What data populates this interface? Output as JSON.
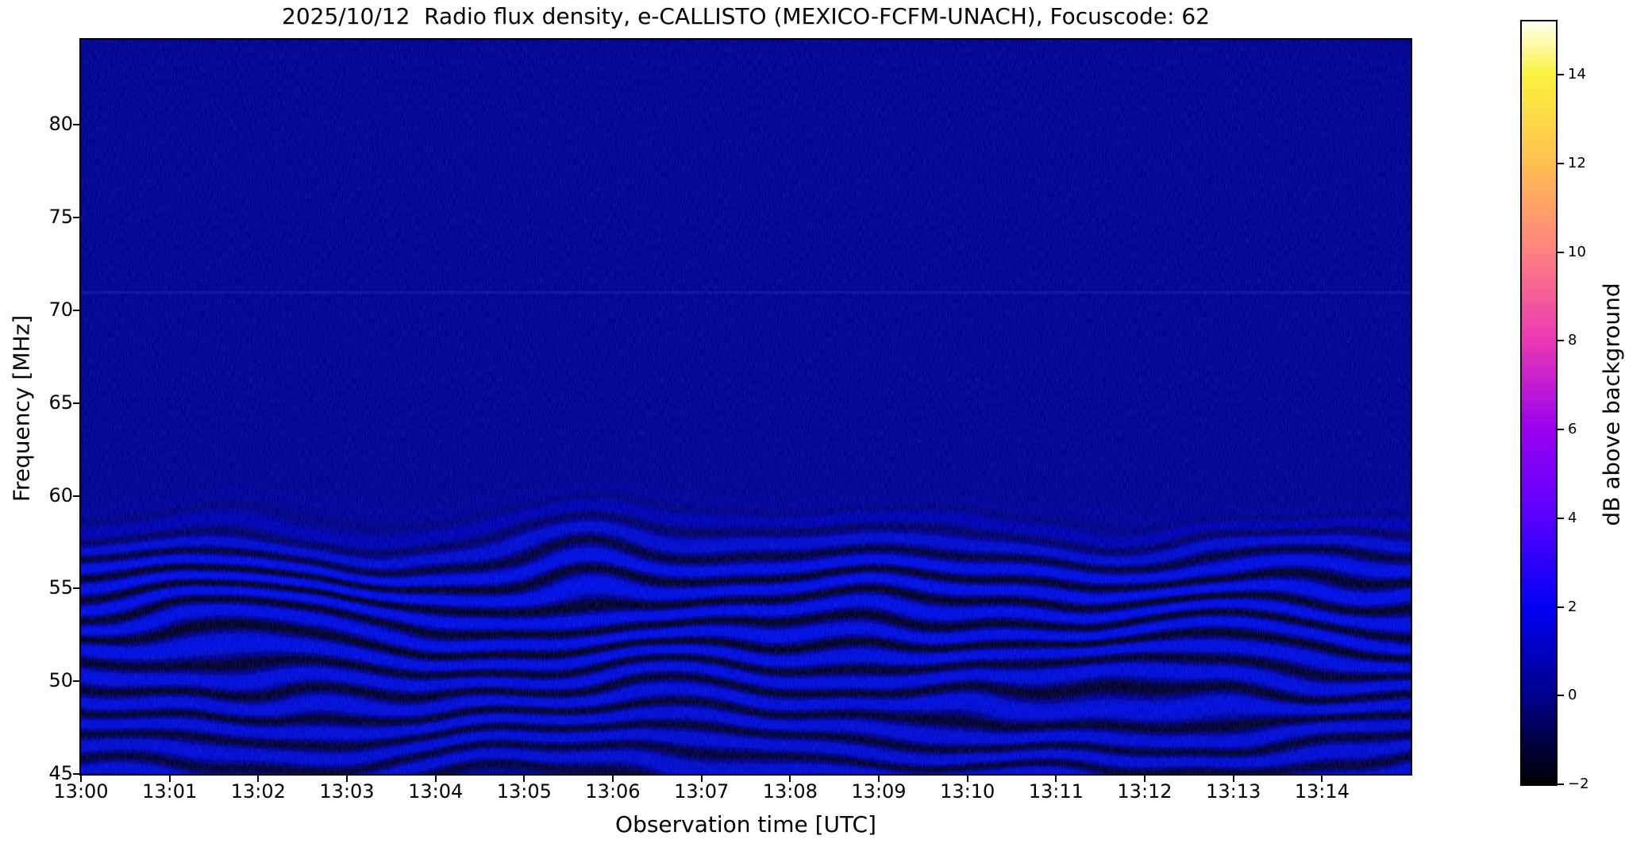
{
  "figure": {
    "title": "2025/10/12  Radio flux density, e-CALLISTO (MEXICO-FCFM-UNACH), Focuscode: 62",
    "xlabel": "Observation time [UTC]",
    "ylabel": "Frequency [MHz]",
    "colorbar_label": "dB above background"
  },
  "chart_data": {
    "type": "heatmap",
    "subtype": "radio-spectrogram",
    "title": "2025/10/12  Radio flux density, e-CALLISTO (MEXICO-FCFM-UNACH), Focuscode: 62",
    "xlabel": "Observation time [UTC]",
    "ylabel": "Frequency [MHz]",
    "x_ticks": [
      "13:00",
      "13:01",
      "13:02",
      "13:03",
      "13:04",
      "13:05",
      "13:06",
      "13:07",
      "13:08",
      "13:09",
      "13:10",
      "13:11",
      "13:12",
      "13:13",
      "13:14"
    ],
    "x_range": [
      "13:00",
      "13:15"
    ],
    "x_tick_interval_min": 1,
    "y_ticks": [
      "80",
      "75",
      "70",
      "65",
      "60",
      "55",
      "50",
      "45"
    ],
    "y_tick_values": [
      80,
      75,
      70,
      65,
      60,
      55,
      50,
      45
    ],
    "ylim_mhz": [
      45,
      84.6
    ],
    "grid": false,
    "colorbar": {
      "label": "dB above background",
      "position": "right",
      "tick_labels": [
        "14",
        "12",
        "10",
        "8",
        "6",
        "4",
        "2",
        "0",
        "−2"
      ],
      "tick_values": [
        14,
        12,
        10,
        8,
        6,
        4,
        2,
        0,
        -2
      ],
      "range_db": [
        -2,
        15.2
      ],
      "colormap": "gnuplot2-like (black-blue-violet-magenta-orange-yellow-white)",
      "colormap_stops": [
        {
          "v": -2,
          "color": "#000000"
        },
        {
          "v": 0,
          "color": "#00008c"
        },
        {
          "v": 2,
          "color": "#0000f4"
        },
        {
          "v": 4,
          "color": "#5800ff"
        },
        {
          "v": 6,
          "color": "#9b00f0"
        },
        {
          "v": 8,
          "color": "#ea38b4"
        },
        {
          "v": 10,
          "color": "#ff8181"
        },
        {
          "v": 12,
          "color": "#ffc04e"
        },
        {
          "v": 14,
          "color": "#fcf23e"
        },
        {
          "v": 15.2,
          "color": "#fffff2"
        }
      ]
    },
    "spectrogram": {
      "background_level_db": 0.3,
      "base_color": "#000092",
      "noise_color": "#1a2af0",
      "ripple_band_mhz": [
        45,
        60
      ],
      "ripple_bright_color": "#000df5",
      "ripple_dark_color": "#000014",
      "ripple_spacing_mhz": 1.2,
      "ripple_wave_period_min": 2.5,
      "faint_line_mhz": 71,
      "faint_line_color": "#2a3adf"
    },
    "features": [
      "Uniform dark navy background (~0 dB) above 60 MHz with fine vertical noise streaks",
      "Wavy horizontal interference ripple bands between 45 and 60 MHz, alternating bright blue crests and near-black troughs, undulating with ~2-3 minute period",
      "Darkest ripple troughs concentrated near 54-57 MHz",
      "Very faint brighter horizontal line near 71 MHz spanning the full time range",
      "No solar radio burst visible; entire 13:00-13:15 UTC interval near background level"
    ]
  }
}
